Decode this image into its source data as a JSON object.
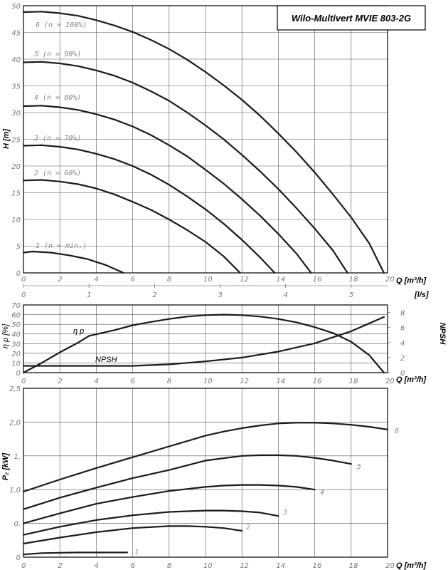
{
  "chart_data": [
    {
      "type": "line",
      "title": "Wilo-Multivert MVIE 803-2G",
      "ylabel": "H [m]",
      "xlabel": "Q [m³/h]",
      "secondary_x_label": "[l/s]",
      "xlim": [
        0,
        20
      ],
      "ylim": [
        0,
        50
      ],
      "x_ticks": [
        "0",
        "2",
        "4",
        "6",
        "8",
        "10",
        "12",
        "14",
        "16",
        "18",
        "20"
      ],
      "y_ticks": [
        "0",
        "5",
        "10",
        "15",
        "20",
        "25",
        "30",
        "35",
        "40",
        "45",
        "50"
      ],
      "secondary_x_ticks": [
        "0",
        "1",
        "2",
        "3",
        "4",
        "5"
      ],
      "series": [
        {
          "name": "1 (n = min.)",
          "x": [
            0,
            0.5,
            1.5,
            2.5,
            3.5,
            4.5,
            5.5
          ],
          "y": [
            3.8,
            4.0,
            3.8,
            3.3,
            2.6,
            1.5,
            0
          ]
        },
        {
          "name": "2 (n = 60%)",
          "x": [
            0,
            1,
            2,
            3,
            4,
            5,
            6,
            7,
            8,
            9,
            10,
            11,
            11.9
          ],
          "y": [
            17.3,
            17.4,
            17.1,
            16.6,
            15.8,
            14.7,
            13.3,
            11.8,
            10.0,
            8.0,
            5.8,
            3.1,
            0
          ]
        },
        {
          "name": "3 (n = 70%)",
          "x": [
            0,
            1,
            2,
            3,
            4,
            5,
            6,
            7,
            8,
            9,
            10,
            11,
            12,
            13,
            13.8
          ],
          "y": [
            23.8,
            23.9,
            23.6,
            23.1,
            22.3,
            21.3,
            20.0,
            18.4,
            16.5,
            14.3,
            11.9,
            9.2,
            6.2,
            2.9,
            0
          ]
        },
        {
          "name": "4 (n = 80%)",
          "x": [
            0,
            1,
            2,
            3,
            4,
            5,
            6,
            7,
            8,
            9,
            10,
            11,
            12,
            13,
            14,
            15,
            15.8
          ],
          "y": [
            31.2,
            31.3,
            31.0,
            30.5,
            29.7,
            28.7,
            27.4,
            25.8,
            23.9,
            21.8,
            19.3,
            16.7,
            13.8,
            10.7,
            7.3,
            3.6,
            0
          ]
        },
        {
          "name": "5 (n = 90%)",
          "x": [
            0,
            1,
            2,
            3,
            4,
            5,
            6,
            7,
            8,
            9,
            10,
            11,
            12,
            13,
            14,
            15,
            16,
            17,
            17.8
          ],
          "y": [
            39.4,
            39.5,
            39.2,
            38.7,
            37.9,
            36.9,
            35.6,
            34.0,
            32.2,
            30.0,
            27.6,
            25.0,
            22.1,
            19.0,
            15.7,
            12.1,
            8.3,
            4.2,
            0
          ]
        },
        {
          "name": "6 (n = 100%)",
          "x": [
            0,
            1,
            2,
            3,
            4,
            5,
            6,
            7,
            8,
            9,
            10,
            11,
            12,
            13,
            14,
            15,
            16,
            17,
            18,
            19,
            19.8
          ],
          "y": [
            48.8,
            48.9,
            48.6,
            48.1,
            47.3,
            46.3,
            45.1,
            43.6,
            41.9,
            39.9,
            37.6,
            35.1,
            32.4,
            29.4,
            26.1,
            22.6,
            18.8,
            14.7,
            10.4,
            5.5,
            0
          ]
        }
      ]
    },
    {
      "type": "line",
      "xlabel": "Q [m³/h]",
      "ylabel": "η p [%]",
      "y2label": "NPSH",
      "xlim": [
        0,
        20
      ],
      "ylim": [
        0,
        70
      ],
      "y2lim": [
        0,
        9
      ],
      "x_ticks": [
        "0",
        "2",
        "4",
        "6",
        "8",
        "10",
        "12",
        "14",
        "16",
        "18",
        "20"
      ],
      "y_ticks": [
        "0",
        "10",
        "20",
        "30",
        "40",
        "50",
        "60",
        "70"
      ],
      "y2_ticks": [
        "0",
        "2",
        "4",
        "6",
        "8"
      ],
      "series": [
        {
          "name": "η p",
          "axis": "left",
          "x": [
            0,
            1,
            2,
            3,
            3.6,
            5,
            6,
            7,
            8,
            9,
            10,
            11,
            12,
            13,
            14,
            15,
            16,
            17,
            18,
            19,
            19.8
          ],
          "y": [
            0,
            10,
            21,
            31,
            38,
            44,
            49,
            52.5,
            55.5,
            58,
            59.5,
            60,
            59.5,
            58,
            55.5,
            52,
            47,
            41,
            32,
            18,
            0
          ]
        },
        {
          "name": "NPSH",
          "axis": "right",
          "x": [
            0,
            2,
            4,
            6,
            8,
            10,
            12,
            14,
            16,
            18,
            19.8
          ],
          "y": [
            0.9,
            0.9,
            0.9,
            0.9,
            1.1,
            1.5,
            2.0,
            2.8,
            3.9,
            5.5,
            7.4
          ]
        }
      ]
    },
    {
      "type": "line",
      "xlabel": "Q [m³/h]",
      "ylabel": "P₂ [kW]",
      "xlim": [
        0,
        20
      ],
      "ylim": [
        0,
        2.5
      ],
      "x_ticks": [
        "0",
        "2",
        "4",
        "6",
        "8",
        "10",
        "12",
        "14",
        "16",
        "18",
        "20"
      ],
      "y_ticks": [
        "0",
        "0,",
        "1,0",
        "1,",
        "2,0",
        "2,5"
      ],
      "series": [
        {
          "name": "1",
          "x": [
            0,
            1,
            2,
            3,
            4,
            5,
            5.7
          ],
          "y": [
            0.04,
            0.06,
            0.065,
            0.07,
            0.07,
            0.07,
            0.07
          ]
        },
        {
          "name": "2",
          "x": [
            0,
            2,
            4,
            6,
            8,
            9,
            10,
            11,
            12
          ],
          "y": [
            0.2,
            0.29,
            0.37,
            0.43,
            0.46,
            0.46,
            0.45,
            0.43,
            0.39
          ]
        },
        {
          "name": "3",
          "x": [
            0,
            2,
            4,
            6,
            8,
            10,
            11,
            12,
            13,
            14
          ],
          "y": [
            0.33,
            0.45,
            0.55,
            0.62,
            0.67,
            0.69,
            0.69,
            0.68,
            0.66,
            0.61
          ]
        },
        {
          "name": "4",
          "x": [
            0,
            2,
            4,
            6,
            8,
            10,
            11,
            12,
            13,
            14,
            15,
            16
          ],
          "y": [
            0.5,
            0.65,
            0.79,
            0.89,
            0.98,
            1.04,
            1.06,
            1.07,
            1.07,
            1.06,
            1.04,
            1.0
          ]
        },
        {
          "name": "5",
          "x": [
            0,
            2,
            4,
            6,
            8,
            10,
            12,
            13,
            14,
            15,
            16,
            17,
            18
          ],
          "y": [
            0.71,
            0.88,
            1.03,
            1.17,
            1.29,
            1.43,
            1.5,
            1.51,
            1.51,
            1.5,
            1.47,
            1.43,
            1.38
          ]
        },
        {
          "name": "6",
          "x": [
            0,
            2,
            4,
            6,
            8,
            10,
            11,
            12,
            13,
            14,
            15,
            16,
            17,
            18,
            19,
            20
          ],
          "y": [
            0.97,
            1.15,
            1.32,
            1.48,
            1.64,
            1.8,
            1.86,
            1.91,
            1.95,
            1.98,
            1.99,
            1.99,
            1.98,
            1.96,
            1.93,
            1.89
          ]
        }
      ]
    }
  ]
}
